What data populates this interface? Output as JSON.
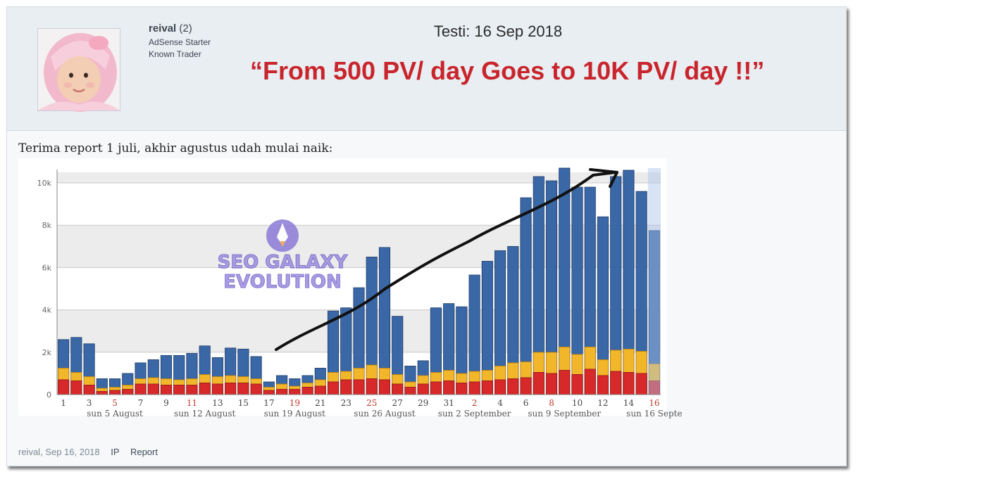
{
  "post": {
    "author": {
      "name": "reival",
      "count": "(2)",
      "titles": [
        "AdSense Starter",
        "Known Trader"
      ]
    },
    "testi_date": "Testi: 16 Sep 2018",
    "headline": "“From 500 PV/ day Goes to 10K PV/ day !!”",
    "message": "Terima report 1 juli, akhir agustus udah mulai naik:",
    "footer": {
      "meta": "reival, Sep 16, 2018",
      "ip_label": "IP",
      "report_label": "Report"
    }
  },
  "watermark": {
    "line1": "SEO GALAXY",
    "line2": "EVOLUTION"
  },
  "colors": {
    "headline": "#c8262c",
    "pageviews": "#3a67a5",
    "sessions": "#f2b62a",
    "visitors": "#d7282a"
  },
  "chart_data": {
    "type": "bar",
    "ylim": [
      0,
      10500
    ],
    "yticks": [
      {
        "v": 0,
        "label": "0"
      },
      {
        "v": 2000,
        "label": "2k"
      },
      {
        "v": 4000,
        "label": "4k"
      },
      {
        "v": 6000,
        "label": "6k"
      },
      {
        "v": 8000,
        "label": "8k"
      },
      {
        "v": 10000,
        "label": "10k"
      }
    ],
    "x": [
      "1",
      "2",
      "3",
      "4",
      "5",
      "6",
      "7",
      "8",
      "9",
      "10",
      "11",
      "12",
      "13",
      "14",
      "15",
      "16",
      "17",
      "18",
      "19",
      "20",
      "21",
      "22",
      "23",
      "24",
      "25",
      "26",
      "27",
      "28",
      "29",
      "30",
      "31",
      "1",
      "2",
      "3",
      "4",
      "5",
      "6",
      "7",
      "8",
      "9",
      "10",
      "11",
      "12",
      "13",
      "14",
      "15",
      "16"
    ],
    "xtick_labels": [
      {
        "i": 0,
        "label": "1",
        "weekend": false
      },
      {
        "i": 2,
        "label": "3",
        "weekend": false
      },
      {
        "i": 4,
        "label": "5",
        "weekend": true
      },
      {
        "i": 6,
        "label": "7",
        "weekend": false
      },
      {
        "i": 8,
        "label": "9",
        "weekend": false
      },
      {
        "i": 10,
        "label": "11",
        "weekend": true
      },
      {
        "i": 12,
        "label": "13",
        "weekend": false
      },
      {
        "i": 14,
        "label": "15",
        "weekend": false
      },
      {
        "i": 16,
        "label": "17",
        "weekend": false
      },
      {
        "i": 18,
        "label": "19",
        "weekend": true
      },
      {
        "i": 20,
        "label": "21",
        "weekend": false
      },
      {
        "i": 22,
        "label": "23",
        "weekend": false
      },
      {
        "i": 24,
        "label": "25",
        "weekend": true
      },
      {
        "i": 26,
        "label": "27",
        "weekend": false
      },
      {
        "i": 28,
        "label": "29",
        "weekend": false
      },
      {
        "i": 30,
        "label": "31",
        "weekend": false
      },
      {
        "i": 32,
        "label": "2",
        "weekend": true
      },
      {
        "i": 34,
        "label": "4",
        "weekend": false
      },
      {
        "i": 36,
        "label": "6",
        "weekend": false
      },
      {
        "i": 38,
        "label": "8",
        "weekend": true
      },
      {
        "i": 40,
        "label": "10",
        "weekend": false
      },
      {
        "i": 42,
        "label": "12",
        "weekend": false
      },
      {
        "i": 44,
        "label": "14",
        "weekend": false
      },
      {
        "i": 46,
        "label": "16",
        "weekend": true
      }
    ],
    "week_labels": [
      {
        "i": 4,
        "label": "sun 5 August"
      },
      {
        "i": 11,
        "label": "sun 12 August"
      },
      {
        "i": 18,
        "label": "sun 19 August"
      },
      {
        "i": 25,
        "label": "sun 26 August"
      },
      {
        "i": 32,
        "label": "sun 2 September"
      },
      {
        "i": 39,
        "label": "sun 9 September"
      },
      {
        "i": 46,
        "label": "sun 16 Septe"
      }
    ],
    "series": [
      {
        "values": [
          2600,
          2700,
          2400,
          750,
          750,
          1000,
          1500,
          1650,
          1850,
          1850,
          1950,
          2300,
          1750,
          2200,
          2150,
          1800,
          600,
          900,
          750,
          900,
          1250,
          3950,
          4100,
          5050,
          6500,
          6950,
          3700,
          1350,
          1600,
          4100,
          4300,
          4150,
          5650,
          6300,
          6800,
          7000,
          9300,
          10300,
          10100,
          10700,
          9800,
          9800,
          8400,
          10300,
          10600,
          9600,
          7750
        ]
      },
      {
        "values": [
          1250,
          1050,
          850,
          300,
          350,
          450,
          750,
          800,
          750,
          700,
          750,
          950,
          850,
          900,
          850,
          750,
          350,
          500,
          400,
          550,
          700,
          1050,
          1100,
          1250,
          1400,
          1250,
          950,
          600,
          900,
          1050,
          1150,
          1000,
          1100,
          1150,
          1350,
          1500,
          1550,
          2000,
          2000,
          2250,
          1900,
          2250,
          1650,
          2100,
          2150,
          2050,
          1450
        ]
      },
      {
        "values": [
          700,
          650,
          450,
          150,
          200,
          250,
          500,
          500,
          450,
          450,
          450,
          550,
          500,
          550,
          550,
          500,
          200,
          250,
          250,
          350,
          400,
          600,
          700,
          700,
          750,
          700,
          500,
          350,
          500,
          600,
          650,
          550,
          600,
          650,
          700,
          750,
          800,
          1050,
          1000,
          1150,
          950,
          1200,
          900,
          1100,
          1050,
          1000,
          650
        ]
      }
    ]
  }
}
